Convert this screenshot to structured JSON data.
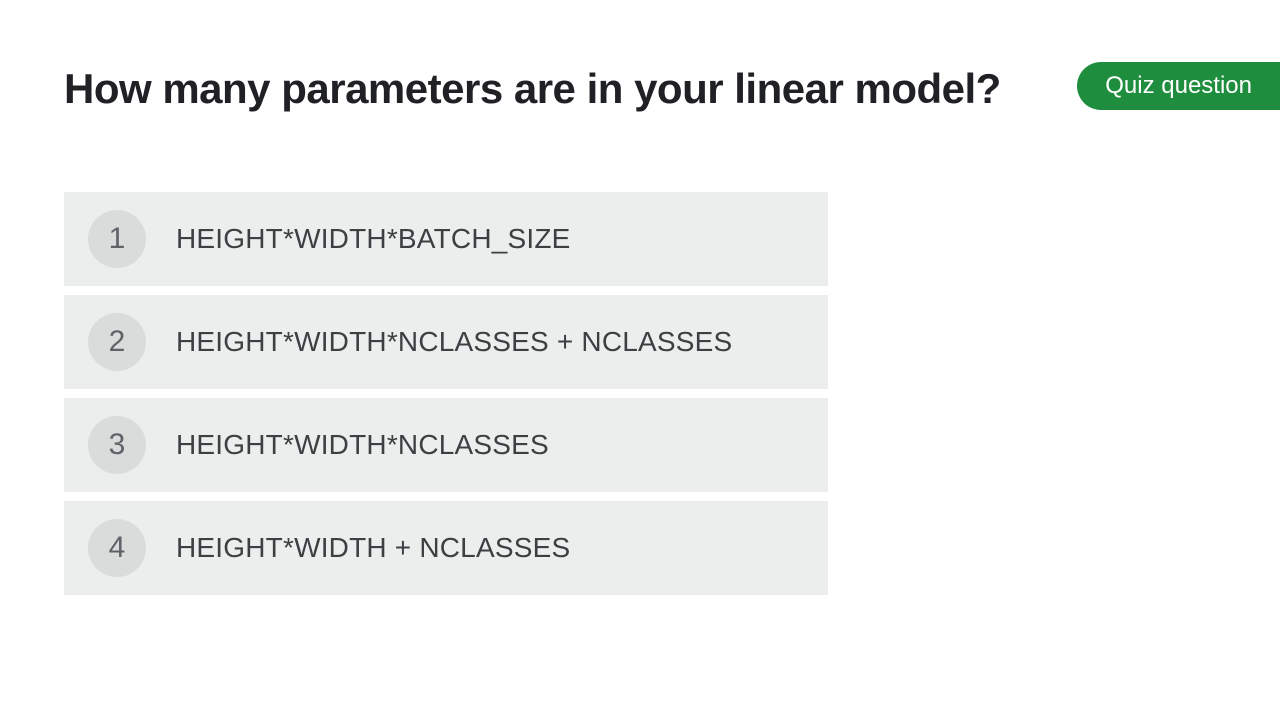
{
  "question": {
    "title": "How many parameters are in your linear model?"
  },
  "badge": {
    "label": "Quiz question",
    "background_color": "#1e8e3e",
    "text_color": "#ffffff"
  },
  "options": [
    {
      "number": "1",
      "text": "HEIGHT*WIDTH*BATCH_SIZE"
    },
    {
      "number": "2",
      "text": "HEIGHT*WIDTH*NCLASSES + NCLASSES"
    },
    {
      "number": "3",
      "text": "HEIGHT*WIDTH*NCLASSES"
    },
    {
      "number": "4",
      "text": "HEIGHT*WIDTH + NCLASSES"
    }
  ],
  "styles": {
    "option_background": "#eceded",
    "option_circle_background": "#dadbdb",
    "option_number_color": "#5f6368",
    "option_text_color": "#3c4043",
    "title_color": "#202124"
  }
}
